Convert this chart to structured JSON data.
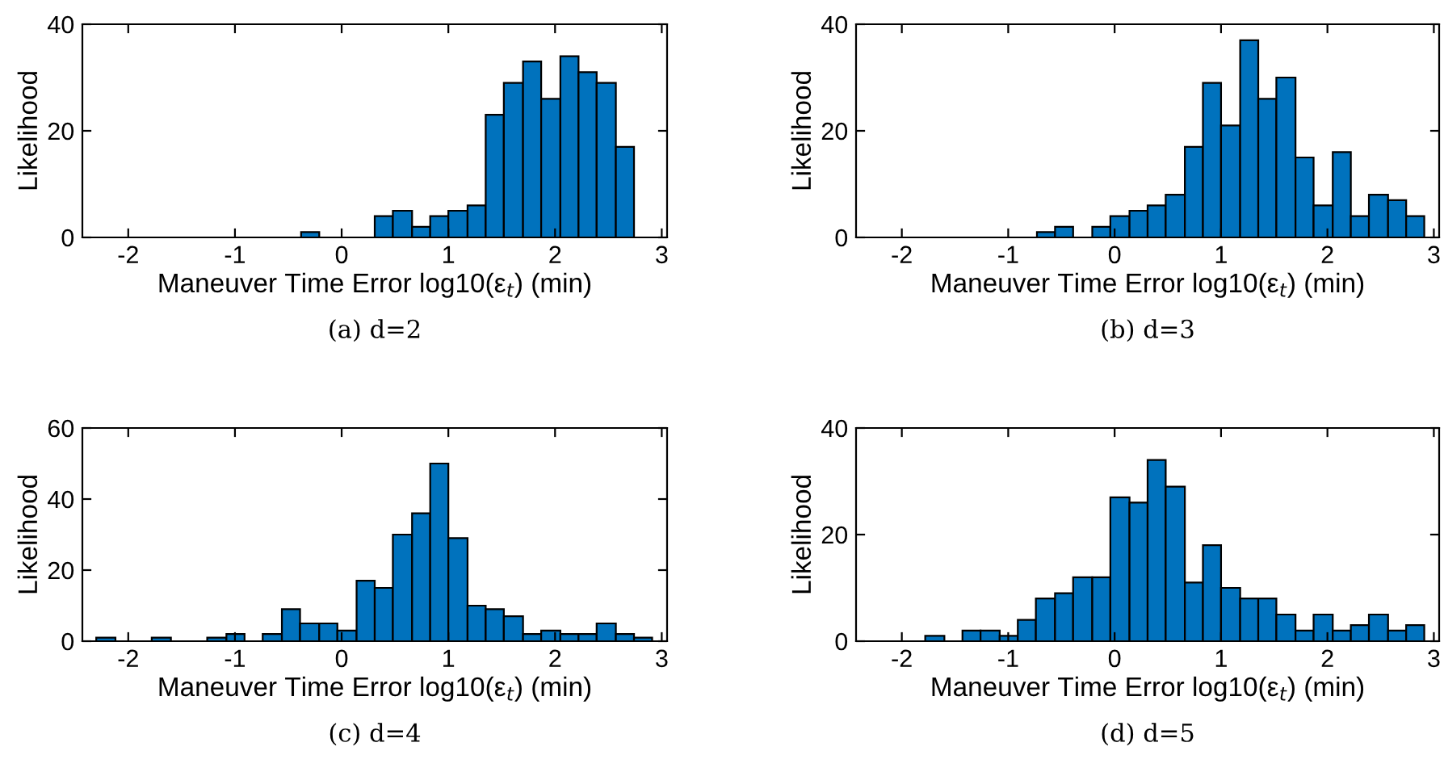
{
  "chart_data": [
    {
      "type": "histogram",
      "xlabel": "Maneuver Time Error log10(ε$_{t}$) (min)",
      "ylabel": "Likelihood",
      "annotations": [
        "(a) d=2"
      ],
      "color": "#0072bd",
      "bins": [
        -0.38,
        -0.21,
        0.31,
        0.48,
        0.66,
        0.83,
        1.0,
        1.18,
        1.35,
        1.52,
        1.7,
        1.87,
        2.05,
        2.22,
        2.39,
        2.57,
        2.74
      ],
      "values": [
        1,
        0,
        4,
        5,
        2,
        4,
        5,
        6,
        23,
        29,
        33,
        26,
        34,
        31,
        29,
        17
      ],
      "xlim": [
        -2.43,
        3.05
      ],
      "xticks": [
        -2,
        -1,
        0,
        1,
        2,
        3
      ],
      "ylim": [
        0,
        40
      ],
      "yticks": [
        0,
        20,
        40
      ],
      "grid": false,
      "legend": false
    },
    {
      "type": "histogram",
      "xlabel": "Maneuver Time Error log10(ε$_{t}$) (min)",
      "ylabel": "Likelihood",
      "annotations": [
        "(b) d=3"
      ],
      "color": "#0072bd",
      "bins": [
        -0.73,
        -0.56,
        -0.39,
        -0.21,
        -0.04,
        0.14,
        0.31,
        0.48,
        0.66,
        0.83,
        1.0,
        1.18,
        1.35,
        1.52,
        1.7,
        1.87,
        2.05,
        2.22,
        2.39,
        2.57,
        2.74,
        2.91
      ],
      "values": [
        1,
        2,
        0,
        2,
        4,
        5,
        6,
        8,
        17,
        29,
        21,
        37,
        26,
        30,
        15,
        6,
        16,
        4,
        8,
        7,
        4
      ],
      "xlim": [
        -2.43,
        3.05
      ],
      "xticks": [
        -2,
        -1,
        0,
        1,
        2,
        3
      ],
      "ylim": [
        0,
        40
      ],
      "yticks": [
        0,
        20,
        40
      ],
      "grid": false,
      "legend": false
    },
    {
      "type": "histogram",
      "xlabel": "Maneuver Time Error log10(ε$_{t}$) (min)",
      "ylabel": "Likelihood",
      "annotations": [
        "(c) d=4"
      ],
      "color": "#0072bd",
      "bins": [
        -2.3,
        -2.12,
        -1.78,
        -1.6,
        -1.26,
        -1.08,
        -0.91,
        -0.74,
        -0.56,
        -0.39,
        -0.21,
        -0.04,
        0.14,
        0.31,
        0.48,
        0.66,
        0.83,
        1.0,
        1.18,
        1.35,
        1.52,
        1.7,
        1.87,
        2.05,
        2.22,
        2.39,
        2.57,
        2.74,
        2.91
      ],
      "values": [
        1,
        0,
        1,
        0,
        1,
        2,
        0,
        2,
        9,
        5,
        5,
        3,
        17,
        15,
        30,
        36,
        50,
        29,
        10,
        9,
        7,
        2,
        3,
        2,
        2,
        5,
        2,
        1
      ],
      "xlim": [
        -2.43,
        3.05
      ],
      "xticks": [
        -2,
        -1,
        0,
        1,
        2,
        3
      ],
      "ylim": [
        0,
        60
      ],
      "yticks": [
        0,
        20,
        40,
        60
      ],
      "grid": false,
      "legend": false
    },
    {
      "type": "histogram",
      "xlabel": "Maneuver Time Error log10(ε$_{t}$) (min)",
      "ylabel": "Likelihood",
      "annotations": [
        "(d) d=5"
      ],
      "color": "#0072bd",
      "bins": [
        -1.78,
        -1.6,
        -1.43,
        -1.26,
        -1.08,
        -0.91,
        -0.74,
        -0.56,
        -0.39,
        -0.21,
        -0.04,
        0.14,
        0.31,
        0.48,
        0.66,
        0.83,
        1.0,
        1.18,
        1.35,
        1.52,
        1.7,
        1.87,
        2.05,
        2.22,
        2.39,
        2.57,
        2.74,
        2.91
      ],
      "values": [
        1,
        0,
        2,
        2,
        1,
        4,
        8,
        9,
        12,
        12,
        27,
        26,
        34,
        29,
        11,
        18,
        10,
        8,
        8,
        5,
        2,
        5,
        2,
        3,
        5,
        2,
        3
      ],
      "xlim": [
        -2.43,
        3.05
      ],
      "xticks": [
        -2,
        -1,
        0,
        1,
        2,
        3
      ],
      "ylim": [
        0,
        40
      ],
      "yticks": [
        0,
        20,
        40
      ],
      "grid": false,
      "legend": false
    }
  ]
}
